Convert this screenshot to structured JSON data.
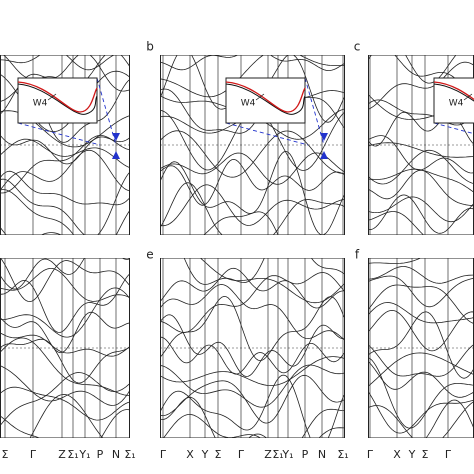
{
  "top_row": [
    {
      "inset_label": "W4"
    },
    {
      "label": "b",
      "inset_label": "W4"
    },
    {
      "label": "c",
      "inset_label": "W4"
    }
  ],
  "bottom_row": [
    {
      "kpoints": [
        "Σ",
        "Γ",
        "Z",
        "Σ₁",
        "Y₁",
        "P",
        "N",
        "Σ₁"
      ]
    },
    {
      "label": "e",
      "kpoints": [
        "Γ",
        "X",
        "Y",
        "Σ",
        "Γ",
        "Z",
        "Σ₁",
        "Y₁",
        "P",
        "N",
        "Σ₁"
      ]
    },
    {
      "label": "f",
      "kpoints": [
        "Γ",
        "X",
        "Y",
        "Σ",
        "Γ"
      ]
    }
  ]
}
